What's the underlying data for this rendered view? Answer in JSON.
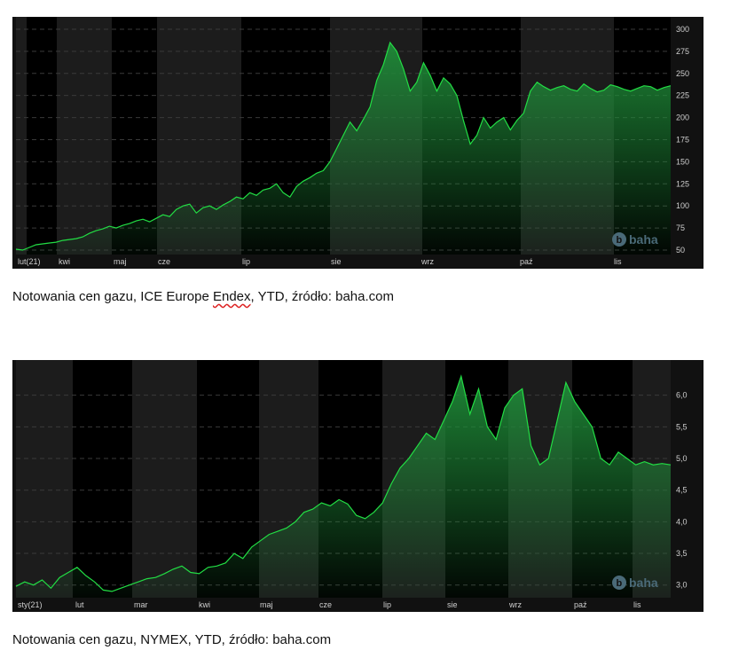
{
  "chart_data": [
    {
      "type": "area",
      "xlabel": "",
      "ylabel": "",
      "months": [
        "lut(21)",
        "kwi",
        "maj",
        "cze",
        "lip",
        "sie",
        "wrz",
        "paź",
        "lis"
      ],
      "yticks": [
        50,
        75,
        100,
        125,
        150,
        175,
        200,
        225,
        250,
        275,
        300
      ],
      "ylim": [
        45,
        310
      ],
      "series": [
        {
          "x": [
            0,
            3,
            6,
            9,
            12,
            15,
            18,
            21,
            24,
            27,
            30,
            33,
            36,
            39,
            42,
            45,
            48,
            51,
            54,
            57,
            60,
            63,
            66,
            69,
            72,
            75,
            78,
            81,
            84,
            87,
            90,
            93,
            96,
            99,
            102,
            105,
            108,
            111,
            114,
            117,
            120,
            123,
            126,
            129,
            132,
            135,
            138,
            141,
            144,
            147,
            150,
            153,
            156,
            159,
            162,
            165,
            168,
            171,
            174,
            177,
            180,
            183,
            186,
            189,
            192,
            195,
            198,
            201,
            204,
            207,
            210,
            213,
            216,
            219,
            222,
            225,
            228,
            231,
            234,
            237,
            240,
            243,
            246,
            249,
            252,
            255,
            258,
            261,
            264,
            267,
            270,
            273,
            276,
            279,
            282,
            285,
            288,
            291,
            294
          ],
          "y": [
            51,
            50,
            53,
            56,
            57,
            58,
            59,
            61,
            62,
            63,
            65,
            69,
            72,
            74,
            77,
            75,
            78,
            80,
            83,
            85,
            82,
            86,
            90,
            88,
            96,
            100,
            102,
            92,
            98,
            100,
            96,
            101,
            105,
            110,
            108,
            115,
            112,
            118,
            120,
            125,
            115,
            110,
            122,
            128,
            132,
            137,
            140,
            150,
            165,
            180,
            195,
            185,
            198,
            212,
            242,
            260,
            285,
            275,
            255,
            230,
            240,
            262,
            248,
            230,
            245,
            238,
            225,
            196,
            170,
            180,
            200,
            188,
            195,
            200,
            186,
            197,
            205,
            230,
            240,
            235,
            231,
            234,
            236,
            232,
            230,
            238,
            233,
            229,
            231,
            237,
            235,
            232,
            230,
            233,
            236,
            235,
            231,
            234,
            236
          ]
        }
      ]
    },
    {
      "type": "area",
      "xlabel": "",
      "ylabel": "",
      "months": [
        "sty(21)",
        "lut",
        "mar",
        "kwi",
        "maj",
        "cze",
        "lip",
        "sie",
        "wrz",
        "paź",
        "lis"
      ],
      "yticks": [
        3.0,
        3.5,
        4.0,
        4.5,
        5.0,
        5.5,
        6.0
      ],
      "ylim": [
        2.8,
        6.5
      ],
      "series": [
        {
          "x": [
            0,
            4,
            8,
            12,
            16,
            20,
            24,
            28,
            32,
            36,
            40,
            44,
            48,
            52,
            56,
            60,
            64,
            68,
            72,
            76,
            80,
            84,
            88,
            92,
            96,
            100,
            104,
            108,
            112,
            116,
            120,
            124,
            128,
            132,
            136,
            140,
            144,
            148,
            152,
            156,
            160,
            164,
            168,
            172,
            176,
            180,
            184,
            188,
            192,
            196,
            200,
            204,
            208,
            212,
            216,
            220,
            224,
            228,
            232,
            236,
            240,
            244,
            248,
            252,
            256,
            260,
            264,
            268,
            272,
            276,
            280,
            284,
            288,
            292,
            296,
            300
          ],
          "y": [
            2.98,
            3.05,
            3.0,
            3.08,
            2.95,
            3.12,
            3.2,
            3.28,
            3.15,
            3.05,
            2.92,
            2.9,
            2.95,
            3.0,
            3.05,
            3.1,
            3.12,
            3.18,
            3.25,
            3.3,
            3.2,
            3.18,
            3.28,
            3.3,
            3.35,
            3.5,
            3.42,
            3.6,
            3.7,
            3.8,
            3.85,
            3.9,
            4.0,
            4.15,
            4.2,
            4.3,
            4.25,
            4.35,
            4.28,
            4.1,
            4.05,
            4.15,
            4.3,
            4.6,
            4.85,
            5.0,
            5.2,
            5.4,
            5.3,
            5.6,
            5.9,
            6.3,
            5.7,
            6.1,
            5.5,
            5.3,
            5.8,
            6.0,
            6.1,
            5.2,
            4.9,
            5.0,
            5.6,
            6.2,
            5.9,
            5.7,
            5.5,
            5.0,
            4.9,
            5.1,
            5.0,
            4.9,
            4.95,
            4.9,
            4.92,
            4.9
          ]
        }
      ]
    }
  ],
  "captions": {
    "chart1": {
      "before": "Notowania cen gazu, ICE Europe ",
      "underlined": "Endex",
      "after": ", YTD, źródło: baha.com"
    },
    "chart2": "Notowania cen gazu, NYMEX, YTD, źródło: baha.com"
  },
  "watermark": {
    "text": "baha",
    "icon": "b-circle-icon"
  },
  "colors": {
    "line": "#22dd44",
    "fill": "#1f8a38",
    "band_dark": "#000000",
    "band_light": "#1c1c1c",
    "grid": "#3a3a3a",
    "text": "#cfcfcf"
  }
}
